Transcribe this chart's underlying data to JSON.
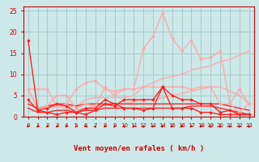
{
  "background_color": "#cce8e8",
  "grid_color": "#aacccc",
  "text_color": "#cc0000",
  "xlabel": "Vent moyen/en rafales ( km/h )",
  "xlim": [
    -0.5,
    23.5
  ],
  "ylim": [
    0,
    26
  ],
  "yticks": [
    0,
    5,
    10,
    15,
    20,
    25
  ],
  "xticks": [
    0,
    1,
    2,
    3,
    4,
    5,
    6,
    7,
    8,
    9,
    10,
    11,
    12,
    13,
    14,
    15,
    16,
    17,
    18,
    19,
    20,
    21,
    22,
    23
  ],
  "series": [
    {
      "x": [
        0,
        1,
        2,
        3,
        4,
        5,
        6,
        7,
        8,
        9,
        10,
        11,
        12,
        13,
        14,
        15,
        16,
        17,
        18,
        19,
        20,
        21,
        22,
        23
      ],
      "y": [
        18,
        1.5,
        1,
        0.5,
        1,
        1,
        2,
        2,
        4,
        3,
        2,
        2,
        1.5,
        2,
        7,
        2,
        2,
        2,
        1,
        1,
        0.5,
        0.5,
        0.5,
        0.5
      ],
      "color": "#ff2222",
      "lw": 1.0,
      "marker": "D",
      "ms": 1.8,
      "zorder": 5
    },
    {
      "x": [
        0,
        1,
        2,
        3,
        4,
        5,
        6,
        7,
        8,
        9,
        10,
        11,
        12,
        13,
        14,
        15,
        16,
        17,
        18,
        19,
        20,
        21,
        22,
        23
      ],
      "y": [
        4,
        1.5,
        2,
        3,
        2.5,
        1,
        0.5,
        1.5,
        3,
        2.5,
        4,
        4,
        4,
        4,
        7,
        5,
        4,
        4,
        3,
        3,
        1,
        1.5,
        0.5,
        0.5
      ],
      "color": "#ff2222",
      "lw": 1.0,
      "marker": "D",
      "ms": 1.8,
      "zorder": 5
    },
    {
      "x": [
        0,
        1,
        2,
        3,
        4,
        5,
        6,
        7,
        8,
        9,
        10,
        11,
        12,
        13,
        14,
        15,
        16,
        17,
        18,
        19,
        20,
        21,
        22,
        23
      ],
      "y": [
        6.5,
        6.5,
        6.5,
        2.5,
        3,
        6.5,
        8,
        8.5,
        6.5,
        6,
        6.5,
        6.5,
        16,
        19,
        24.5,
        18.5,
        15.5,
        18,
        13.5,
        14,
        15.5,
        3,
        6.5,
        3
      ],
      "color": "#ffaaaa",
      "lw": 1.0,
      "marker": "D",
      "ms": 1.8,
      "zorder": 4
    },
    {
      "x": [
        0,
        1,
        2,
        3,
        4,
        5,
        6,
        7,
        8,
        9,
        10,
        11,
        12,
        13,
        14,
        15,
        16,
        17,
        18,
        19,
        20,
        21,
        22,
        23
      ],
      "y": [
        6.5,
        2,
        2.5,
        5,
        5,
        2,
        3,
        2.5,
        7,
        5,
        6.5,
        6.5,
        7,
        7,
        7,
        7,
        7,
        6.5,
        7,
        7,
        3,
        3,
        1,
        3
      ],
      "color": "#ffaaaa",
      "lw": 1.0,
      "marker": "D",
      "ms": 1.8,
      "zorder": 4
    },
    {
      "x": [
        0,
        1,
        2,
        3,
        4,
        5,
        6,
        7,
        8,
        9,
        10,
        11,
        12,
        13,
        14,
        15,
        16,
        17,
        18,
        19,
        20,
        21,
        22,
        23
      ],
      "y": [
        6.5,
        2,
        2,
        2.5,
        2.5,
        2.5,
        4,
        4.5,
        4.5,
        4.5,
        4.5,
        5,
        7,
        8,
        9,
        9.5,
        10,
        11,
        11.5,
        12,
        13,
        13.5,
        14.5,
        15.5
      ],
      "color": "#ffaaaa",
      "lw": 1.0,
      "marker": null,
      "ms": 0,
      "zorder": 3
    },
    {
      "x": [
        0,
        1,
        2,
        3,
        4,
        5,
        6,
        7,
        8,
        9,
        10,
        11,
        12,
        13,
        14,
        15,
        16,
        17,
        18,
        19,
        20,
        21,
        22,
        23
      ],
      "y": [
        6.5,
        2,
        2,
        2.5,
        2,
        1.5,
        2,
        2.5,
        2.5,
        3,
        3,
        3.5,
        4,
        4,
        4.5,
        5,
        5.5,
        6,
        6.5,
        7,
        7,
        6,
        5,
        3
      ],
      "color": "#ffaaaa",
      "lw": 1.0,
      "marker": null,
      "ms": 0,
      "zorder": 3
    },
    {
      "x": [
        0,
        1,
        2,
        3,
        4,
        5,
        6,
        7,
        8,
        9,
        10,
        11,
        12,
        13,
        14,
        15,
        16,
        17,
        18,
        19,
        20,
        21,
        22,
        23
      ],
      "y": [
        3,
        2,
        2.5,
        3,
        3,
        2.5,
        3,
        3,
        3,
        3,
        3,
        3,
        3,
        3,
        3,
        3,
        3,
        3,
        3,
        3,
        3,
        2.5,
        2,
        1.5
      ],
      "color": "#ff2222",
      "lw": 1.0,
      "marker": null,
      "ms": 0,
      "zorder": 3
    },
    {
      "x": [
        0,
        1,
        2,
        3,
        4,
        5,
        6,
        7,
        8,
        9,
        10,
        11,
        12,
        13,
        14,
        15,
        16,
        17,
        18,
        19,
        20,
        21,
        22,
        23
      ],
      "y": [
        2,
        1,
        1,
        1.5,
        1.5,
        1,
        1.5,
        1.5,
        2,
        2,
        2,
        2,
        2,
        2,
        2,
        2,
        2,
        2.5,
        2.5,
        2.5,
        2,
        1.5,
        1,
        0.5
      ],
      "color": "#ff2222",
      "lw": 1.0,
      "marker": null,
      "ms": 0,
      "zorder": 3
    }
  ],
  "arrow_directions": [
    225,
    225,
    225,
    225,
    225,
    225,
    270,
    45,
    225,
    225,
    45,
    225,
    45,
    225,
    225,
    225,
    225,
    225,
    225,
    315,
    315,
    315,
    315,
    315
  ],
  "arrow_color": "#cc0000"
}
